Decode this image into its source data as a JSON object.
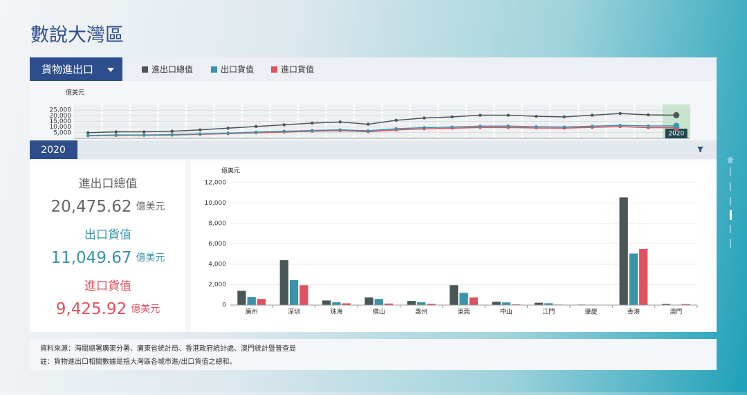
{
  "header": {
    "title": "數說大灣區",
    "dropdown": "貨物進出口",
    "year": "2020"
  },
  "kpis": [
    {
      "label": "進出口總值",
      "value": "20,475.62",
      "unit": "億美元"
    },
    {
      "label": "出口貨值",
      "value": "11,049.67",
      "unit": "億美元"
    },
    {
      "label": "進口貨值",
      "value": "9,425.92",
      "unit": "億美元"
    }
  ],
  "footer": {
    "source": "資料來源：海關總署廣東分署、廣東省統計局、香港政府統計處、澳門統計暨普查局",
    "note": "註：貨物進出口相關數據是指大灣區各城市進/出口貨值之總和。"
  },
  "chart_data": [
    {
      "type": "line",
      "y_label": "億美元",
      "categories": [
        null,
        null,
        null,
        null,
        null,
        null,
        null,
        null,
        null,
        null,
        null,
        null,
        null,
        null,
        null,
        null,
        null,
        null,
        null,
        null,
        null,
        "2020"
      ],
      "series": [
        {
          "name": "進出口總值",
          "color": "#4a5759",
          "values": [
            5000,
            5800,
            5800,
            6300,
            7500,
            9000,
            10500,
            12000,
            13500,
            14500,
            12500,
            16000,
            18000,
            19000,
            20500,
            20500,
            19500,
            19000,
            20500,
            22000,
            20800,
            20475.62
          ]
        },
        {
          "name": "出口貨值",
          "color": "#3a93a8",
          "values": [
            2500,
            3000,
            3000,
            3300,
            3900,
            4700,
            5500,
            6300,
            7000,
            7500,
            6700,
            8500,
            9500,
            10000,
            10800,
            10900,
            10300,
            10000,
            10800,
            11500,
            11000,
            11049.67
          ]
        },
        {
          "name": "進口貨值",
          "color": "#e0505f",
          "values": [
            2300,
            2600,
            2700,
            2900,
            3500,
            4200,
            4900,
            5600,
            6300,
            6800,
            5900,
            7400,
            8400,
            9000,
            9600,
            9600,
            9200,
            9000,
            9700,
            10400,
            9500,
            9425.92
          ]
        }
      ],
      "ylim": [
        0,
        30000
      ],
      "yticks": [
        {
          "value": 5000,
          "label": "5,000"
        },
        {
          "value": 10000,
          "label": "10,000"
        },
        {
          "value": 15000,
          "label": "15,000"
        },
        {
          "value": 20000,
          "label": "20,000"
        },
        {
          "value": 25000,
          "label": "25,000"
        }
      ],
      "grid": true,
      "highlight_color": "#c8e6cf"
    },
    {
      "type": "bar",
      "y_label": "億美元",
      "categories": [
        "廣州",
        "深圳",
        "珠海",
        "佛山",
        "惠州",
        "東莞",
        "中山",
        "江門",
        "肇慶",
        "香港",
        "澳門"
      ],
      "series": [
        {
          "name": "進出口總值",
          "color": "#4a5759",
          "values": [
            1400,
            4400,
            450,
            750,
            400,
            1950,
            330,
            230,
            50,
            10550,
            110
          ]
        },
        {
          "name": "出口貨值",
          "color": "#3a93a8",
          "values": [
            800,
            2450,
            280,
            600,
            270,
            1200,
            260,
            180,
            40,
            5050,
            10
          ]
        },
        {
          "name": "進口貨值",
          "color": "#e0505f",
          "values": [
            600,
            1950,
            170,
            150,
            130,
            750,
            70,
            50,
            15,
            5500,
            100
          ]
        }
      ],
      "ylim": [
        0,
        12000
      ],
      "yticks": [
        0,
        {
          "value": 2000,
          "label": "2,000"
        },
        {
          "value": 4000,
          "label": "4,000"
        },
        {
          "value": 6000,
          "label": "6,000"
        },
        {
          "value": 8000,
          "label": "8,000"
        },
        {
          "value": 10000,
          "label": "10,000"
        },
        {
          "value": 12000,
          "label": "12,000"
        }
      ],
      "grid": true
    }
  ]
}
